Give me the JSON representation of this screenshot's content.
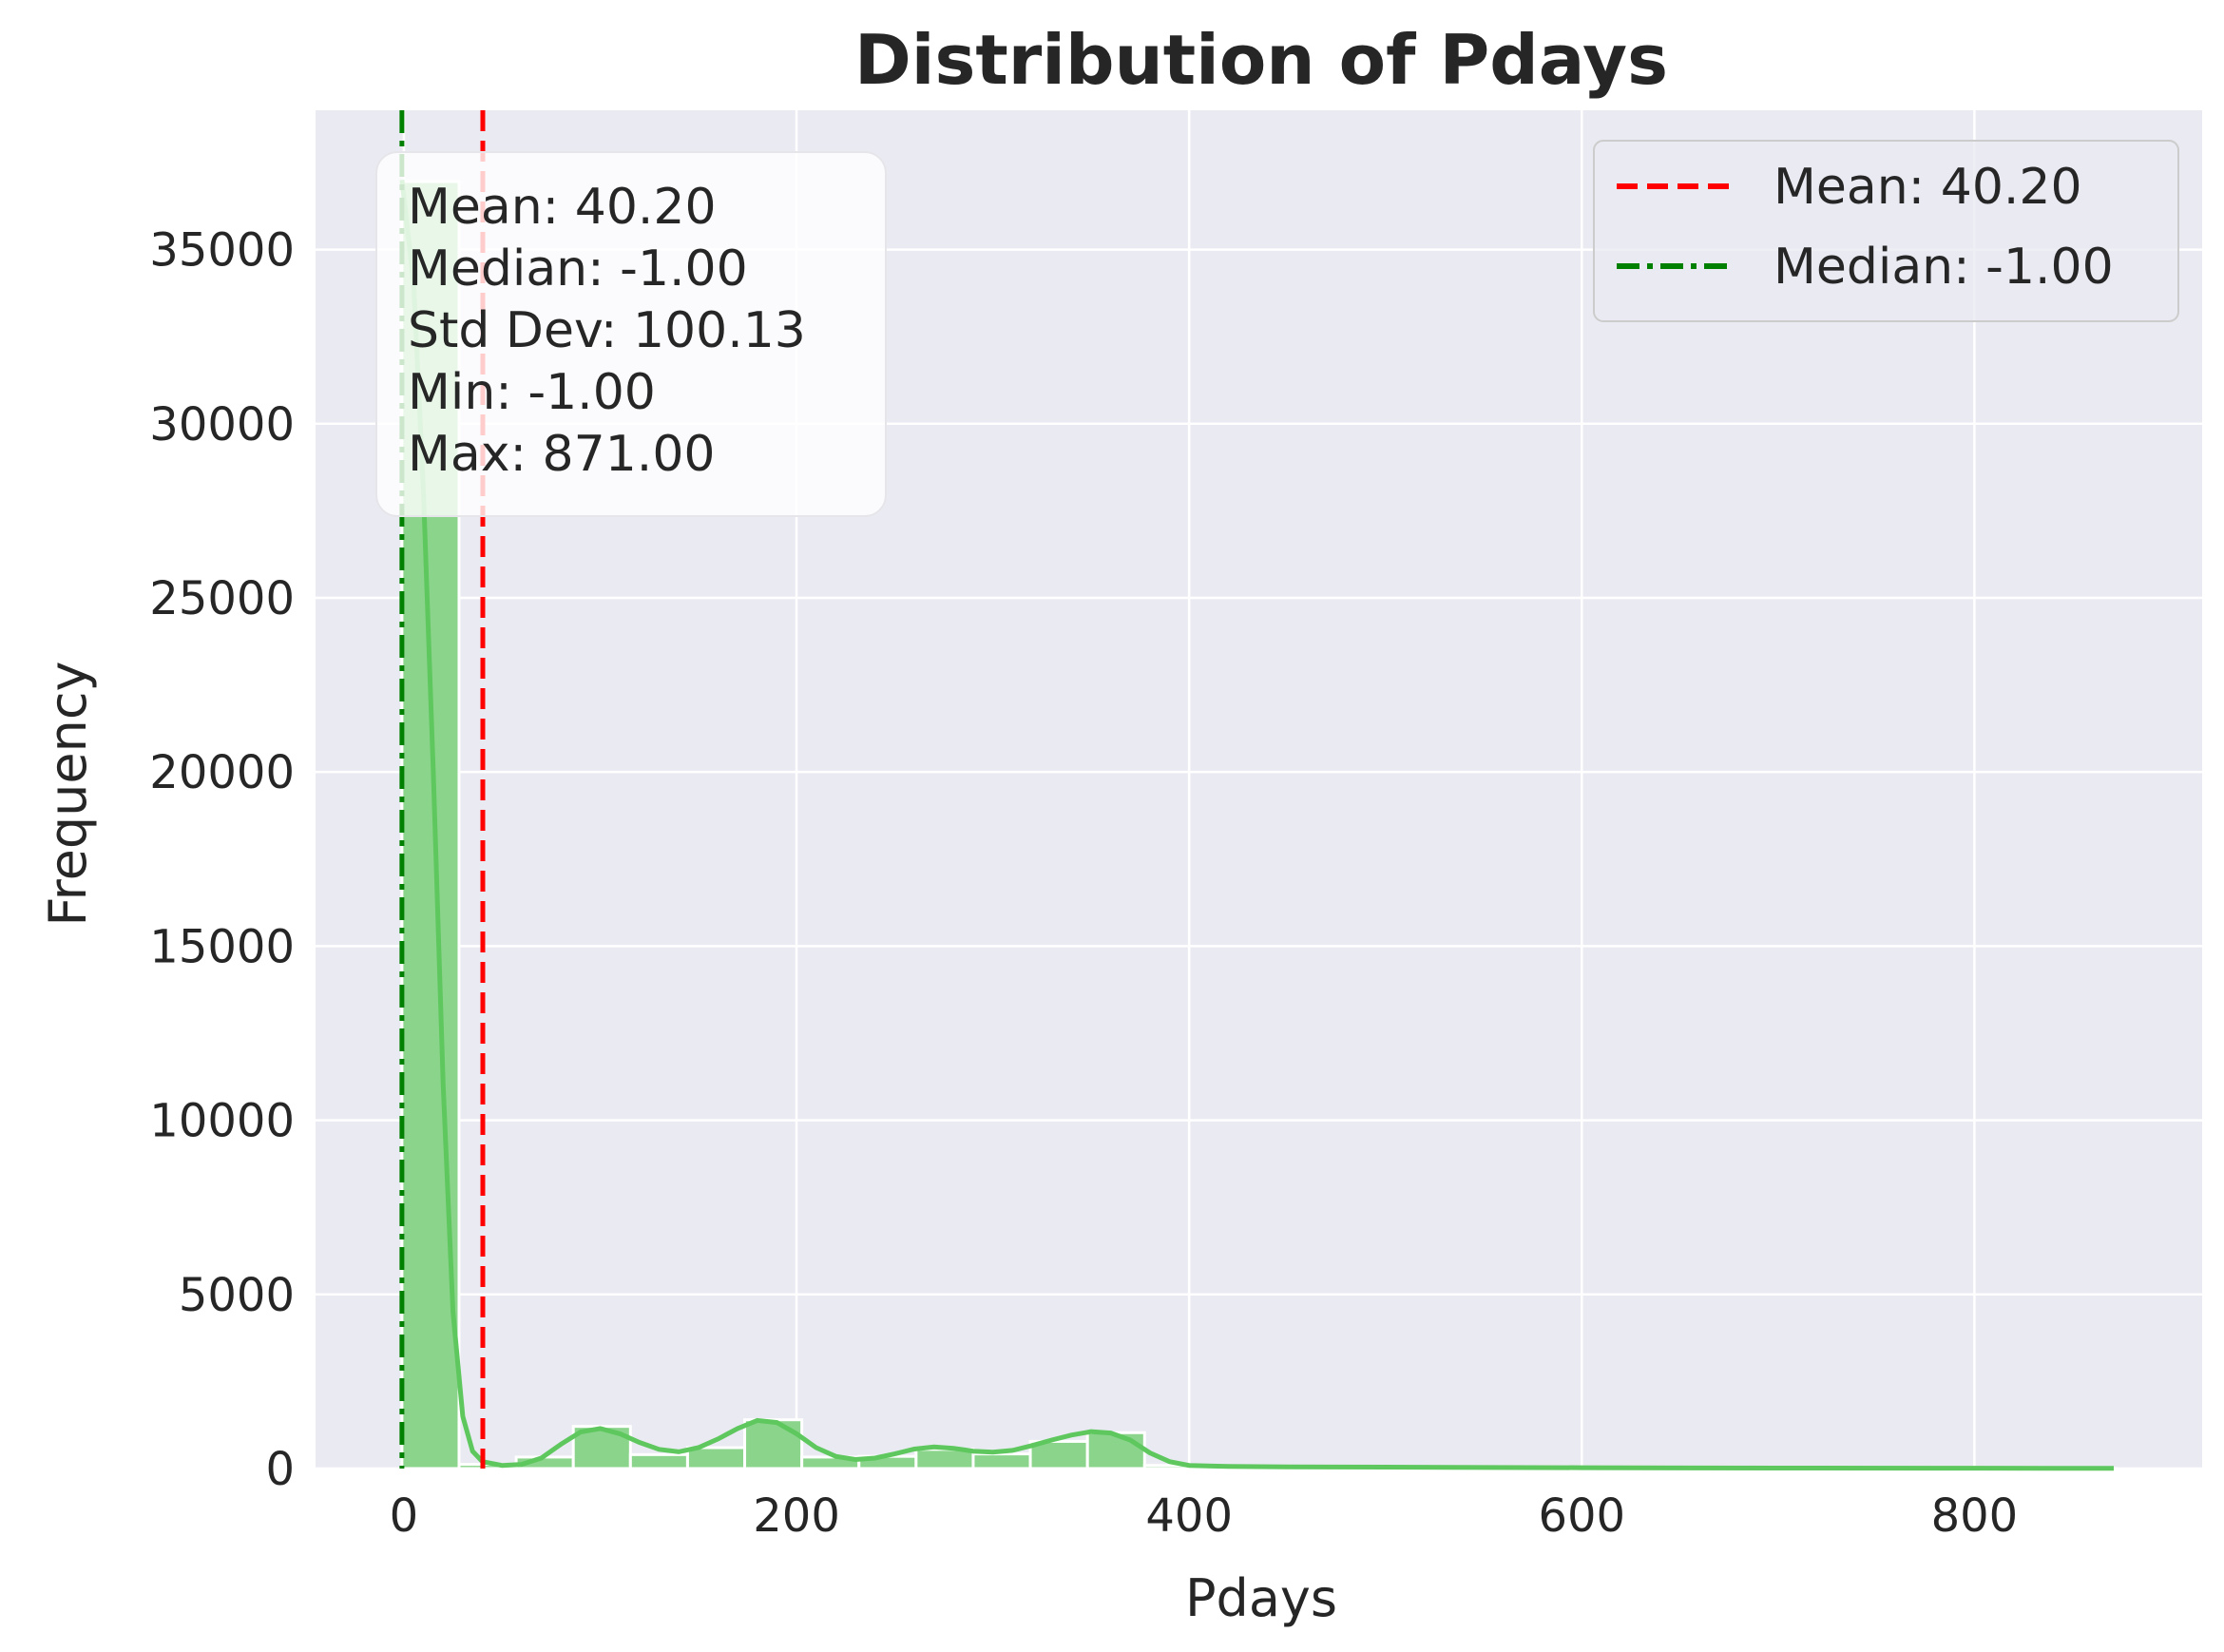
{
  "chart_data": {
    "type": "histogram",
    "title": "Distribution of Pdays",
    "xlabel": "Pdays",
    "ylabel": "Frequency",
    "xlim": [
      -45,
      916
    ],
    "ylim": [
      0,
      39000
    ],
    "xticks": [
      0,
      200,
      400,
      600,
      800
    ],
    "yticks": [
      0,
      5000,
      10000,
      15000,
      20000,
      25000,
      30000,
      35000
    ],
    "grid": true,
    "bin_width": 29.1,
    "bins": [
      {
        "x0": -1.0,
        "x1": 28.1,
        "count": 36954
      },
      {
        "x0": 28.1,
        "x1": 57.2,
        "count": 120
      },
      {
        "x0": 57.2,
        "x1": 86.3,
        "count": 330
      },
      {
        "x0": 86.3,
        "x1": 115.4,
        "count": 1210
      },
      {
        "x0": 115.4,
        "x1": 144.5,
        "count": 400
      },
      {
        "x0": 144.5,
        "x1": 173.6,
        "count": 600
      },
      {
        "x0": 173.6,
        "x1": 202.7,
        "count": 1400
      },
      {
        "x0": 202.7,
        "x1": 231.8,
        "count": 330
      },
      {
        "x0": 231.8,
        "x1": 260.9,
        "count": 350
      },
      {
        "x0": 260.9,
        "x1": 290.0,
        "count": 550
      },
      {
        "x0": 290.0,
        "x1": 319.1,
        "count": 420
      },
      {
        "x0": 319.1,
        "x1": 348.2,
        "count": 780
      },
      {
        "x0": 348.2,
        "x1": 377.3,
        "count": 1030
      },
      {
        "x0": 377.3,
        "x1": 406.4,
        "count": 90
      },
      {
        "x0": 406.4,
        "x1": 435.5,
        "count": 40
      },
      {
        "x0": 435.5,
        "x1": 464.6,
        "count": 30
      },
      {
        "x0": 464.6,
        "x1": 493.7,
        "count": 20
      },
      {
        "x0": 493.7,
        "x1": 522.8,
        "count": 15
      },
      {
        "x0": 522.8,
        "x1": 551.9,
        "count": 12
      },
      {
        "x0": 551.9,
        "x1": 581.0,
        "count": 10
      },
      {
        "x0": 581.0,
        "x1": 610.1,
        "count": 8
      },
      {
        "x0": 610.1,
        "x1": 639.2,
        "count": 6
      },
      {
        "x0": 639.2,
        "x1": 668.3,
        "count": 5
      },
      {
        "x0": 668.3,
        "x1": 697.4,
        "count": 4
      },
      {
        "x0": 697.4,
        "x1": 726.5,
        "count": 4
      },
      {
        "x0": 726.5,
        "x1": 755.6,
        "count": 3
      },
      {
        "x0": 755.6,
        "x1": 784.7,
        "count": 3
      },
      {
        "x0": 784.7,
        "x1": 813.8,
        "count": 2
      },
      {
        "x0": 813.8,
        "x1": 842.9,
        "count": 2
      },
      {
        "x0": 842.9,
        "x1": 872.0,
        "count": 2
      }
    ],
    "kde": {
      "x": [
        -1,
        5,
        10,
        15,
        20,
        25,
        30,
        35,
        40,
        50,
        60,
        70,
        80,
        90,
        100,
        110,
        120,
        130,
        140,
        150,
        160,
        170,
        180,
        190,
        200,
        210,
        220,
        230,
        240,
        250,
        260,
        270,
        280,
        290,
        300,
        310,
        320,
        330,
        340,
        350,
        360,
        370,
        380,
        390,
        400,
        420,
        450,
        500,
        600,
        700,
        800,
        871
      ],
      "y": [
        37000,
        34000,
        28000,
        20000,
        11000,
        4500,
        1500,
        500,
        200,
        90,
        120,
        300,
        700,
        1050,
        1150,
        1000,
        750,
        550,
        480,
        600,
        850,
        1150,
        1380,
        1320,
        1000,
        600,
        350,
        260,
        300,
        420,
        560,
        620,
        580,
        500,
        470,
        520,
        660,
        820,
        960,
        1060,
        1020,
        820,
        450,
        200,
        90,
        60,
        50,
        40,
        25,
        15,
        10,
        5
      ]
    },
    "reference_lines": [
      {
        "name": "Mean: 40.20",
        "x": 40.2,
        "color": "#ff0000",
        "style": "dashed"
      },
      {
        "name": "Median: -1.00",
        "x": -1.0,
        "color": "#008000",
        "style": "dashdot"
      }
    ],
    "series_color": "#5ec85e",
    "bar_fill": "#8bd48b",
    "stats_box": [
      "Mean: 40.20",
      "Median: -1.00",
      "Std Dev: 100.13",
      "Min: -1.00",
      "Max: 871.00"
    ],
    "legend_placement": "top-right"
  }
}
